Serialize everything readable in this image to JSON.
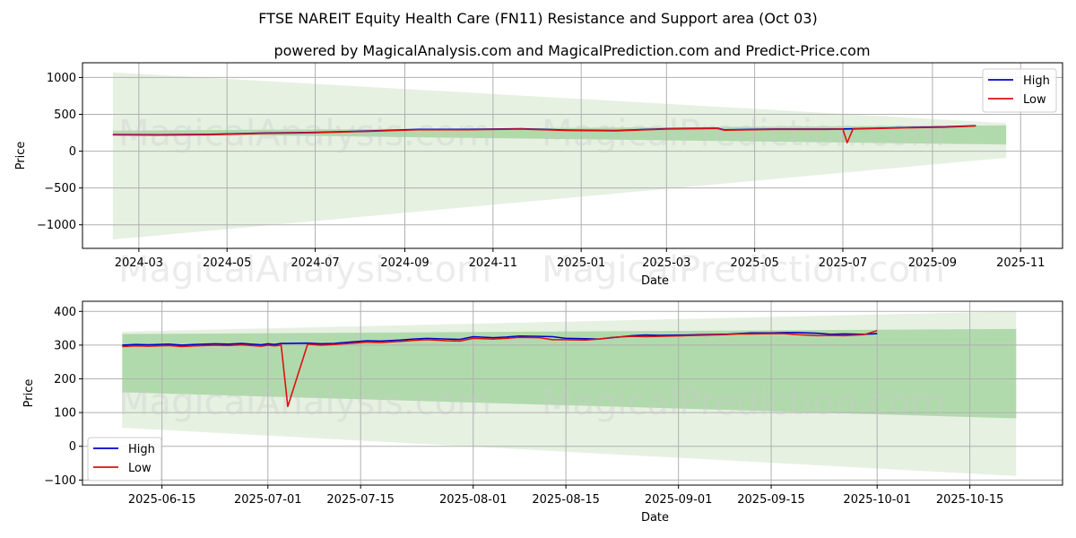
{
  "header": {
    "title": "FTSE NAREIT Equity Health Care (FN11) Resistance and Support area (Oct 03)",
    "subtitle": "powered by MagicalAnalysis.com and MagicalPrediction.com and Predict-Price.com"
  },
  "watermark": {
    "left": "MagicalAnalysis.com",
    "right": "MagicalPrediction.com"
  },
  "colors": {
    "high": "#0000cc",
    "low": "#dd1111",
    "band_light": "#d9ead3",
    "band_dark": "#9fd19a"
  },
  "chart_data": [
    {
      "type": "line",
      "xlabel": "Date",
      "ylabel": "Price",
      "x_tick_labels": [
        "2024-03",
        "2024-05",
        "2024-07",
        "2024-09",
        "2024-11",
        "2025-01",
        "2025-03",
        "2025-05",
        "2025-07",
        "2025-09",
        "2025-11"
      ],
      "x_ticks": [
        "2024-03-01",
        "2024-05-01",
        "2024-07-01",
        "2024-09-01",
        "2024-11-01",
        "2025-01-01",
        "2025-03-01",
        "2025-05-01",
        "2025-07-01",
        "2025-09-01",
        "2025-11-01"
      ],
      "xlim": [
        "2024-01-22",
        "2025-11-30"
      ],
      "y_ticks": [
        -1000,
        -500,
        0,
        500,
        1000
      ],
      "y_tick_labels": [
        "−1000",
        "−500",
        "0",
        "500",
        "1000"
      ],
      "ylim": [
        -1320,
        1200
      ],
      "grid": true,
      "legend": {
        "position": "upper right",
        "entries": [
          "High",
          "Low"
        ]
      },
      "bands": [
        {
          "name": "light",
          "points": [
            {
              "x": "2024-02-12",
              "upper": 1070,
              "lower": -1200
            },
            {
              "x": "2025-10-22",
              "upper": 380,
              "lower": -90
            }
          ]
        },
        {
          "name": "dark",
          "points": [
            {
              "x": "2024-02-12",
              "upper": 280,
              "lower": 240
            },
            {
              "x": "2025-10-22",
              "upper": 350,
              "lower": 90
            }
          ]
        }
      ],
      "series": [
        {
          "name": "High",
          "x": [
            "2024-02-12",
            "2024-03-15",
            "2024-04-20",
            "2024-05-25",
            "2024-06-30",
            "2024-08-05",
            "2024-09-10",
            "2024-10-15",
            "2024-11-20",
            "2024-12-25",
            "2025-01-25",
            "2025-03-01",
            "2025-04-05",
            "2025-04-10",
            "2025-05-15",
            "2025-06-20",
            "2025-07-04",
            "2025-07-10",
            "2025-08-15",
            "2025-09-10",
            "2025-10-01"
          ],
          "y": [
            225,
            222,
            228,
            245,
            255,
            272,
            295,
            295,
            305,
            285,
            280,
            305,
            312,
            290,
            300,
            300,
            302,
            305,
            322,
            330,
            346
          ]
        },
        {
          "name": "Low",
          "x": [
            "2024-02-12",
            "2024-03-15",
            "2024-04-20",
            "2024-05-25",
            "2024-06-30",
            "2024-08-05",
            "2024-09-10",
            "2024-10-15",
            "2024-11-20",
            "2024-12-25",
            "2025-01-25",
            "2025-03-01",
            "2025-04-05",
            "2025-04-10",
            "2025-05-15",
            "2025-06-20",
            "2025-07-01",
            "2025-07-04",
            "2025-07-08",
            "2025-08-15",
            "2025-09-10",
            "2025-10-01"
          ],
          "y": [
            220,
            218,
            222,
            240,
            250,
            268,
            290,
            290,
            300,
            280,
            275,
            300,
            308,
            285,
            295,
            295,
            300,
            115,
            300,
            318,
            325,
            342
          ]
        }
      ]
    },
    {
      "type": "line",
      "xlabel": "Date",
      "ylabel": "Price",
      "x_tick_labels": [
        "2025-06-15",
        "2025-07-01",
        "2025-07-15",
        "2025-08-01",
        "2025-08-15",
        "2025-09-01",
        "2025-09-15",
        "2025-10-01",
        "2025-10-15"
      ],
      "x_ticks": [
        "2025-06-15",
        "2025-07-01",
        "2025-07-15",
        "2025-08-01",
        "2025-08-15",
        "2025-09-01",
        "2025-09-15",
        "2025-10-01",
        "2025-10-15"
      ],
      "xlim": [
        "2025-06-03",
        "2025-10-29"
      ],
      "y_ticks": [
        -100,
        0,
        100,
        200,
        300,
        400
      ],
      "y_tick_labels": [
        "−100",
        "0",
        "100",
        "200",
        "300",
        "400"
      ],
      "ylim": [
        -115,
        430
      ],
      "grid": true,
      "legend": {
        "position": "lower left",
        "entries": [
          "High",
          "Low"
        ]
      },
      "bands": [
        {
          "name": "light",
          "points": [
            {
              "x": "2025-06-09",
              "upper": 340,
              "lower": 55
            },
            {
              "x": "2025-10-22",
              "upper": 400,
              "lower": -88
            }
          ]
        },
        {
          "name": "dark",
          "points": [
            {
              "x": "2025-06-09",
              "upper": 333,
              "lower": 160
            },
            {
              "x": "2025-10-22",
              "upper": 348,
              "lower": 83
            }
          ]
        }
      ],
      "series": [
        {
          "name": "High",
          "x": [
            "2025-06-09",
            "2025-06-11",
            "2025-06-13",
            "2025-06-16",
            "2025-06-18",
            "2025-06-20",
            "2025-06-23",
            "2025-06-25",
            "2025-06-27",
            "2025-06-30",
            "2025-07-01",
            "2025-07-02",
            "2025-07-03",
            "2025-07-07",
            "2025-07-09",
            "2025-07-11",
            "2025-07-14",
            "2025-07-16",
            "2025-07-18",
            "2025-07-21",
            "2025-07-23",
            "2025-07-25",
            "2025-07-28",
            "2025-07-30",
            "2025-08-01",
            "2025-08-04",
            "2025-08-06",
            "2025-08-08",
            "2025-08-11",
            "2025-08-13",
            "2025-08-15",
            "2025-08-18",
            "2025-08-20",
            "2025-08-22",
            "2025-08-25",
            "2025-08-27",
            "2025-08-29",
            "2025-09-02",
            "2025-09-04",
            "2025-09-08",
            "2025-09-10",
            "2025-09-12",
            "2025-09-15",
            "2025-09-17",
            "2025-09-19",
            "2025-09-22",
            "2025-09-24",
            "2025-09-26",
            "2025-09-29",
            "2025-10-01"
          ],
          "y": [
            300,
            302,
            301,
            303,
            300,
            302,
            304,
            303,
            305,
            301,
            304,
            302,
            305,
            306,
            304,
            305,
            310,
            313,
            312,
            315,
            318,
            320,
            318,
            317,
            325,
            322,
            324,
            327,
            326,
            325,
            320,
            319,
            318,
            322,
            328,
            330,
            329,
            330,
            331,
            332,
            334,
            336,
            336,
            337,
            337,
            335,
            332,
            333,
            332,
            334
          ]
        },
        {
          "name": "Low",
          "x": [
            "2025-06-09",
            "2025-06-11",
            "2025-06-13",
            "2025-06-16",
            "2025-06-18",
            "2025-06-20",
            "2025-06-23",
            "2025-06-25",
            "2025-06-27",
            "2025-06-30",
            "2025-07-01",
            "2025-07-02",
            "2025-07-03",
            "2025-07-04",
            "2025-07-07",
            "2025-07-09",
            "2025-07-11",
            "2025-07-14",
            "2025-07-16",
            "2025-07-18",
            "2025-07-21",
            "2025-07-23",
            "2025-07-25",
            "2025-07-28",
            "2025-07-30",
            "2025-08-01",
            "2025-08-04",
            "2025-08-06",
            "2025-08-08",
            "2025-08-11",
            "2025-08-13",
            "2025-08-15",
            "2025-08-18",
            "2025-08-20",
            "2025-08-22",
            "2025-08-25",
            "2025-08-27",
            "2025-08-29",
            "2025-09-02",
            "2025-09-04",
            "2025-09-08",
            "2025-09-10",
            "2025-09-12",
            "2025-09-15",
            "2025-09-17",
            "2025-09-19",
            "2025-09-22",
            "2025-09-24",
            "2025-09-26",
            "2025-09-29",
            "2025-10-01"
          ],
          "y": [
            296,
            298,
            297,
            299,
            296,
            298,
            300,
            299,
            301,
            297,
            300,
            298,
            300,
            118,
            303,
            300,
            302,
            306,
            309,
            308,
            311,
            314,
            316,
            313,
            312,
            320,
            318,
            320,
            323,
            322,
            316,
            316,
            315,
            318,
            323,
            326,
            325,
            326,
            328,
            329,
            331,
            333,
            333,
            334,
            334,
            331,
            328,
            329,
            328,
            331,
            343
          ]
        }
      ]
    }
  ]
}
